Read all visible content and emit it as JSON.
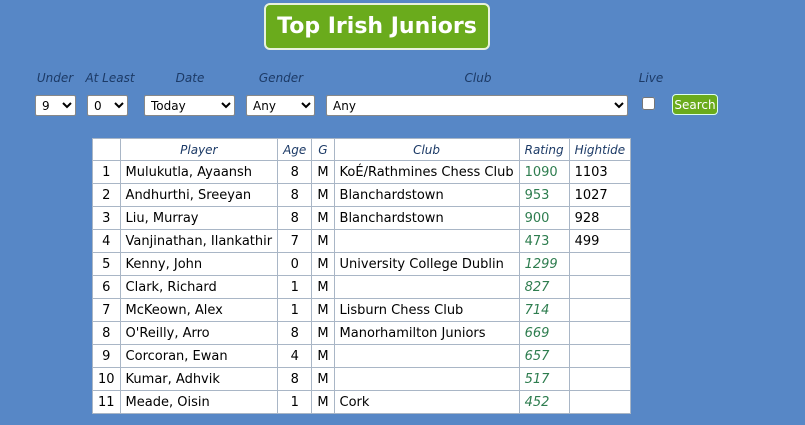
{
  "header": {
    "title": "Top Irish Juniors"
  },
  "filters": [
    {
      "label": "Under",
      "value": "9"
    },
    {
      "label": "At Least",
      "value": "0"
    },
    {
      "label": "Date",
      "value": "Today"
    },
    {
      "label": "Gender",
      "value": "Any"
    },
    {
      "label": "Club",
      "value": "Any"
    },
    {
      "label": "Live"
    }
  ],
  "search_button": "Search",
  "table": {
    "headers": [
      null,
      "Player",
      "Age",
      "G",
      "Club",
      "Rating",
      "Hightide"
    ],
    "rows": [
      [
        1,
        "Mulukutla, Ayaansh",
        8,
        "M",
        "KoÉ/Rathmines Chess Club",
        1090,
        1103
      ],
      [
        2,
        "Andhurthi, Sreeyan",
        8,
        "M",
        "Blanchardstown",
        953,
        1027
      ],
      [
        3,
        "Liu, Murray",
        8,
        "M",
        "Blanchardstown",
        900,
        928
      ],
      [
        4,
        "Vanjinathan, Ilankathir",
        7,
        "M",
        null,
        473,
        499
      ],
      [
        5,
        "Kenny, John",
        0,
        "M",
        "University College Dublin",
        1299,
        null
      ],
      [
        6,
        "Clark, Richard",
        1,
        "M",
        null,
        827,
        null
      ],
      [
        7,
        "McKeown, Alex",
        1,
        "M",
        "Lisburn Chess Club",
        714,
        null
      ],
      [
        8,
        "O'Reilly, Arro",
        8,
        "M",
        "Manorhamilton Juniors",
        669,
        null
      ],
      [
        9,
        "Corcoran, Ewan",
        4,
        "M",
        null,
        657,
        null
      ],
      [
        10,
        "Kumar, Adhvik",
        8,
        "M",
        null,
        517,
        null
      ],
      [
        11,
        "Meade, Oisin",
        1,
        "M",
        "Cork",
        452,
        null
      ]
    ]
  }
}
